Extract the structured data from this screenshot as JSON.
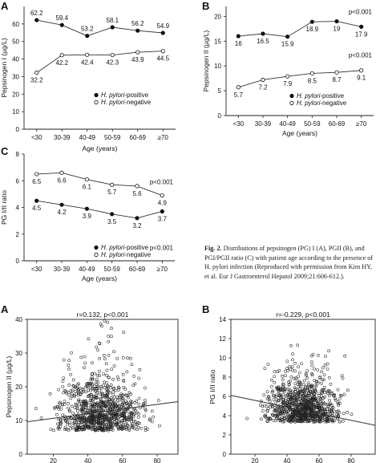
{
  "caption": {
    "label": "Fig. 2.",
    "text": "Distributions of pepsinogen (PG) I (A), PGII (B), and PGI/PGII ratio (C) with patient age according to the presence of H. pylori infection (Reproduced with permission from Kim HY, et al. Eur J Gastroenterol Hepatol 2009;21:606-612.)."
  },
  "chart_data": [
    {
      "panel": "A",
      "panel_label": "A",
      "type": "line",
      "ylabel": "Pepsinogen I (μg/L)",
      "xlabel": "Age (years)",
      "categories": [
        "<30",
        "30-39",
        "40-49",
        "50-59",
        "60-69",
        "≥70"
      ],
      "ylim": [
        0,
        70
      ],
      "yticks": [
        0,
        10,
        20,
        30,
        40,
        50,
        60
      ],
      "ytick_labels": [
        "0",
        "10",
        "20",
        "30",
        "40",
        "50",
        "60"
      ],
      "series": [
        {
          "name": "H. pylori-positive",
          "marker": "filled",
          "values": [
            62.2,
            59.4,
            53.2,
            58.1,
            56.2,
            54.9
          ],
          "labels": [
            "62.2",
            "59.4",
            "53.2",
            "58.1",
            "56.2",
            "54.9"
          ],
          "label_pos": "above"
        },
        {
          "name": "H. pylori-negative",
          "marker": "open",
          "values": [
            32.2,
            42.2,
            42.4,
            42.3,
            43.9,
            44.5
          ],
          "labels": [
            "32.2",
            "42.2",
            "42.4",
            "42.3",
            "43.9",
            "44.5"
          ],
          "label_pos": "below"
        }
      ],
      "annotations": [],
      "legend": "bottom-right"
    },
    {
      "panel": "B",
      "panel_label": "B",
      "type": "line",
      "ylabel": "Pepsinogen II (μg/L)",
      "xlabel": "Age (years)",
      "categories": [
        "<30",
        "30-39",
        "40-49",
        "50-59",
        "60-69",
        "≥70"
      ],
      "ylim": [
        0,
        22
      ],
      "yticks": [
        0,
        5,
        10,
        15,
        20
      ],
      "ytick_labels": [
        "0",
        "5",
        "10",
        "15",
        "20"
      ],
      "series": [
        {
          "name": "H. pylori-positive",
          "marker": "filled",
          "values": [
            16,
            16.5,
            15.9,
            18.9,
            19,
            17.9
          ],
          "labels": [
            "16",
            "16.5",
            "15.9",
            "18.9",
            "19",
            "17.9"
          ],
          "label_pos": "below"
        },
        {
          "name": "H. pylori-negative",
          "marker": "open",
          "values": [
            5.7,
            7.2,
            7.9,
            8.5,
            8.7,
            9.1
          ],
          "labels": [
            "5.7",
            "7.2",
            "7.9",
            "8.5",
            "8.7",
            "9.1"
          ],
          "label_pos": "below"
        }
      ],
      "annotations": [
        "p<0.001",
        "p<0.001"
      ],
      "legend": "bottom-right"
    },
    {
      "panel": "C",
      "panel_label": "C",
      "type": "line",
      "ylabel": "PG I/II ratio",
      "xlabel": "Age (years)",
      "categories": [
        "<30",
        "30-39",
        "40-49",
        "50-59",
        "60-69",
        "≥70"
      ],
      "ylim": [
        0,
        8
      ],
      "yticks": [
        0,
        2,
        4,
        6,
        8
      ],
      "ytick_labels": [
        "0",
        "2",
        "4",
        "6",
        "8"
      ],
      "series": [
        {
          "name": "H. pylori-positive",
          "marker": "filled",
          "values": [
            4.5,
            4.2,
            3.9,
            3.5,
            3.2,
            3.7
          ],
          "labels": [
            "4.5",
            "4.2",
            "3.9",
            "3.5",
            "3.2",
            "3.7"
          ],
          "label_pos": "below"
        },
        {
          "name": "H. pylori-negative",
          "marker": "open",
          "values": [
            6.5,
            6.6,
            6.1,
            5.7,
            5.6,
            4.9
          ],
          "labels": [
            "6.5",
            "6.6",
            "6.1",
            "5.7",
            "5.6",
            "4.9"
          ],
          "label_pos": "below"
        }
      ],
      "annotations": [
        "p<0.001",
        "p<0.001"
      ],
      "legend": "bottom-right"
    },
    {
      "panel": "scatter-A",
      "panel_label": "A",
      "type": "scatter",
      "title": "r=0.132, p<0.001",
      "ylabel": "Pepsinogen II (μg/L)",
      "xlim": [
        5,
        92
      ],
      "ylim": [
        0,
        40
      ],
      "xticks": [
        20,
        40,
        60,
        80
      ],
      "xtick_labels": [
        "20",
        "40",
        "60",
        "80"
      ],
      "yticks": [
        0,
        10,
        20,
        30,
        40
      ],
      "ytick_labels": [
        "0",
        "10",
        "20",
        "30",
        "40"
      ],
      "fit_line": [
        [
          5,
          9.6
        ],
        [
          92,
          15.6
        ]
      ],
      "cloud": {
        "x_mean": 48,
        "x_sd": 12,
        "x_range": [
          10,
          88
        ],
        "y_center": 11,
        "y_spread": 8,
        "y_range": [
          0,
          39.5
        ],
        "n": 900
      }
    },
    {
      "panel": "scatter-B",
      "panel_label": "B",
      "type": "scatter",
      "title": "r=-0.229, p<0.001",
      "ylabel": "PG I/II ratio",
      "xlim": [
        5,
        95
      ],
      "ylim": [
        0,
        14
      ],
      "xticks": [
        20,
        40,
        60,
        80
      ],
      "xtick_labels": [
        "20",
        "40",
        "60",
        "80"
      ],
      "yticks": [
        0,
        2,
        4,
        6,
        8,
        10,
        12,
        14
      ],
      "ytick_labels": [
        "0",
        "2",
        "4",
        "6",
        "8",
        "10",
        "12",
        "14"
      ],
      "fit_line": [
        [
          5,
          6.1
        ],
        [
          95,
          3.0
        ]
      ],
      "cloud": {
        "x_mean": 50,
        "x_sd": 11,
        "x_range": [
          15,
          92
        ],
        "y_center": 4.5,
        "y_spread": 2.3,
        "y_range": [
          0.2,
          13.8
        ],
        "n": 900
      }
    }
  ]
}
